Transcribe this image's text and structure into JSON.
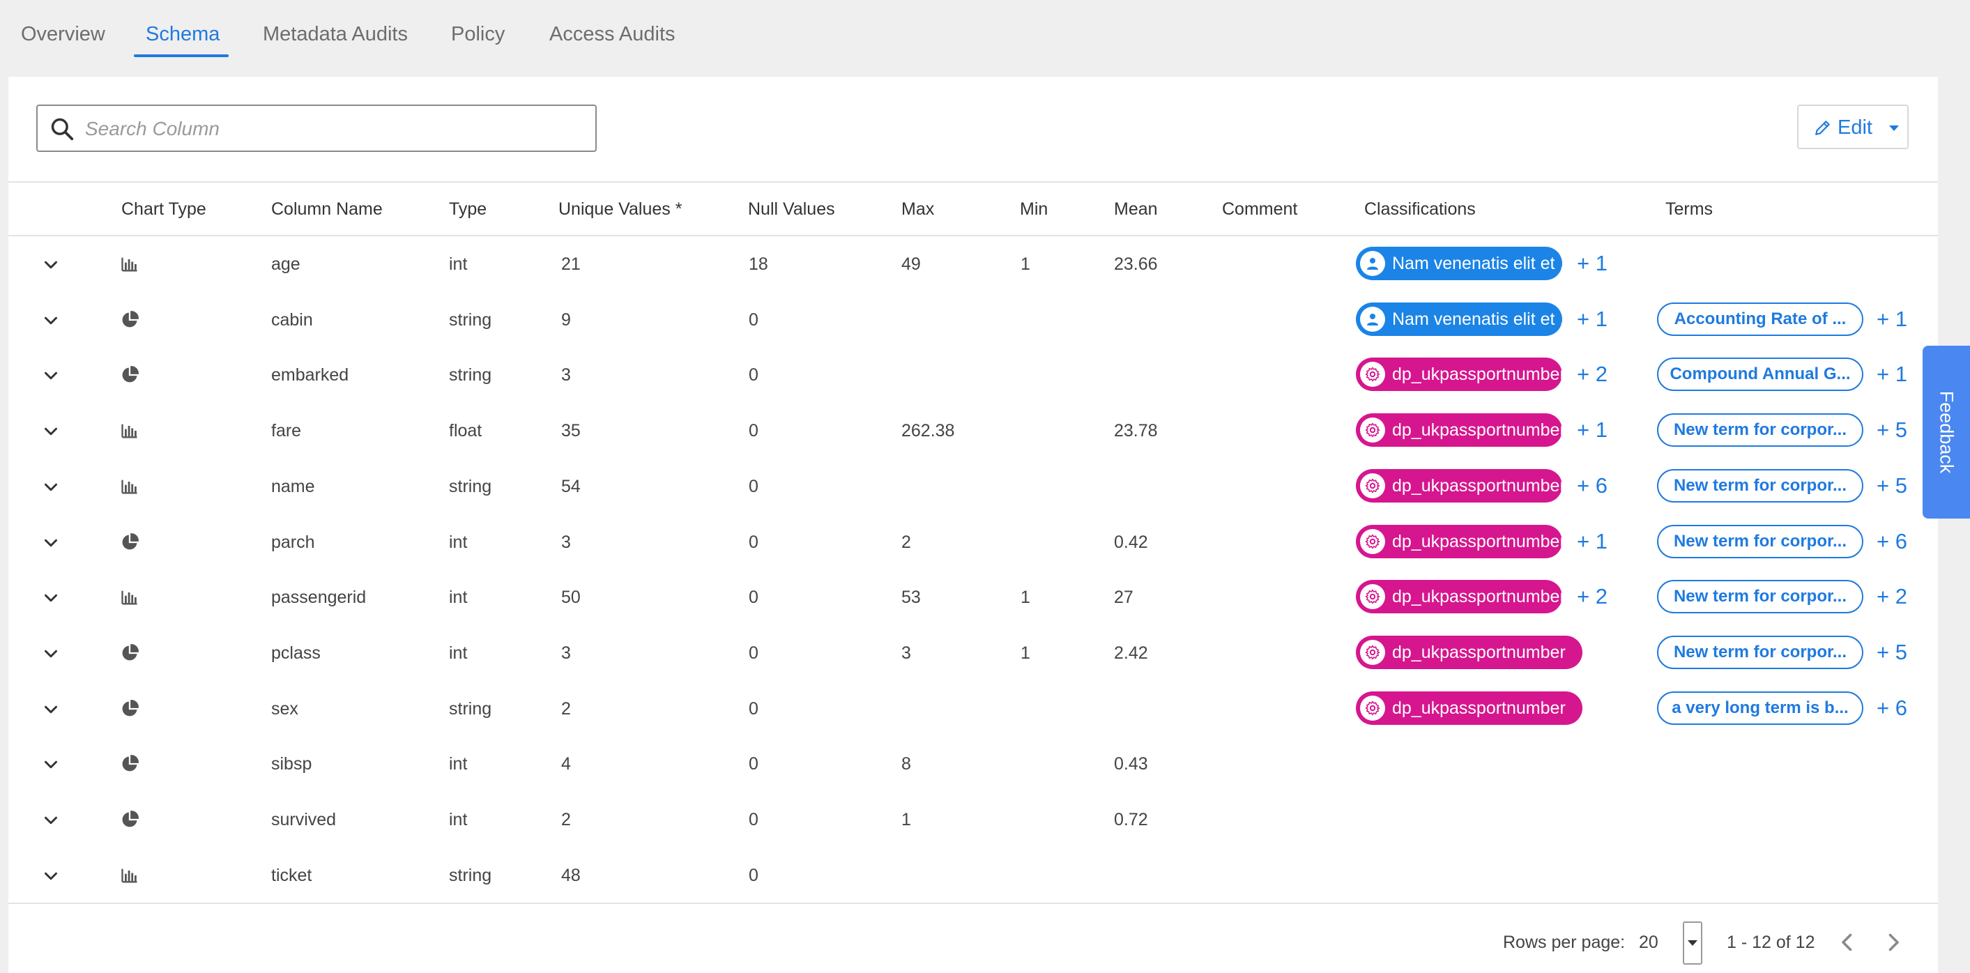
{
  "tabs": [
    {
      "label": "Overview"
    },
    {
      "label": "Schema"
    },
    {
      "label": "Metadata Audits"
    },
    {
      "label": "Policy"
    },
    {
      "label": "Access Audits"
    }
  ],
  "active_tab": "Schema",
  "search": {
    "placeholder": "Search Column",
    "value": ""
  },
  "edit": {
    "label": "Edit"
  },
  "columns": [
    "Chart Type",
    "Column Name",
    "Type",
    "Unique Values *",
    "Null Values",
    "Max",
    "Min",
    "Mean",
    "Comment",
    "Classifications",
    "Terms"
  ],
  "rows": [
    {
      "chart": "bar-chart-icon",
      "name": "age",
      "type": "int",
      "unique": "21",
      "nulls": "18",
      "max": "49",
      "min": "1",
      "mean": "23.66",
      "comment": "",
      "classification": {
        "kind": "user",
        "label": "Nam venenatis elit et ...",
        "more": "+ 1"
      },
      "term": null
    },
    {
      "chart": "pie-chart-icon",
      "name": "cabin",
      "type": "string",
      "unique": "9",
      "nulls": "0",
      "max": "",
      "min": "",
      "mean": "",
      "comment": "",
      "classification": {
        "kind": "user",
        "label": "Nam venenatis elit et ...",
        "more": "+ 1"
      },
      "term": {
        "label": "Accounting Rate of ...",
        "more": "+ 1"
      }
    },
    {
      "chart": "pie-chart-icon",
      "name": "embarked",
      "type": "string",
      "unique": "3",
      "nulls": "0",
      "max": "",
      "min": "",
      "mean": "",
      "comment": "",
      "classification": {
        "kind": "gear",
        "label": "dp_ukpassportnumber",
        "more": "+ 2"
      },
      "term": {
        "label": "Compound Annual G...",
        "more": "+ 1"
      }
    },
    {
      "chart": "bar-chart-icon",
      "name": "fare",
      "type": "float",
      "unique": "35",
      "nulls": "0",
      "max": "262.38",
      "min": "",
      "mean": "23.78",
      "comment": "",
      "classification": {
        "kind": "gear",
        "label": "dp_ukpassportnumber",
        "more": "+ 1"
      },
      "term": {
        "label": "New term for corpor...",
        "more": "+ 5"
      }
    },
    {
      "chart": "bar-chart-icon",
      "name": "name",
      "type": "string",
      "unique": "54",
      "nulls": "0",
      "max": "",
      "min": "",
      "mean": "",
      "comment": "",
      "classification": {
        "kind": "gear",
        "label": "dp_ukpassportnumber",
        "more": "+ 6"
      },
      "term": {
        "label": "New term for corpor...",
        "more": "+ 5"
      }
    },
    {
      "chart": "pie-chart-icon",
      "name": "parch",
      "type": "int",
      "unique": "3",
      "nulls": "0",
      "max": "2",
      "min": "",
      "mean": "0.42",
      "comment": "",
      "classification": {
        "kind": "gear",
        "label": "dp_ukpassportnumber",
        "more": "+ 1"
      },
      "term": {
        "label": "New term for corpor...",
        "more": "+ 6"
      }
    },
    {
      "chart": "bar-chart-icon",
      "name": "passengerid",
      "type": "int",
      "unique": "50",
      "nulls": "0",
      "max": "53",
      "min": "1",
      "mean": "27",
      "comment": "",
      "classification": {
        "kind": "gear",
        "label": "dp_ukpassportnumber",
        "more": "+ 2"
      },
      "term": {
        "label": "New term for corpor...",
        "more": "+ 2"
      }
    },
    {
      "chart": "pie-chart-icon",
      "name": "pclass",
      "type": "int",
      "unique": "3",
      "nulls": "0",
      "max": "3",
      "min": "1",
      "mean": "2.42",
      "comment": "",
      "classification": {
        "kind": "gear",
        "label": "dp_ukpassportnumber",
        "more": ""
      },
      "term": {
        "label": "New term for corpor...",
        "more": "+ 5"
      }
    },
    {
      "chart": "pie-chart-icon",
      "name": "sex",
      "type": "string",
      "unique": "2",
      "nulls": "0",
      "max": "",
      "min": "",
      "mean": "",
      "comment": "",
      "classification": {
        "kind": "gear",
        "label": "dp_ukpassportnumber",
        "more": ""
      },
      "term": {
        "label": "a very long term is b...",
        "more": "+ 6"
      }
    },
    {
      "chart": "pie-chart-icon",
      "name": "sibsp",
      "type": "int",
      "unique": "4",
      "nulls": "0",
      "max": "8",
      "min": "",
      "mean": "0.43",
      "comment": "",
      "classification": null,
      "term": null
    },
    {
      "chart": "pie-chart-icon",
      "name": "survived",
      "type": "int",
      "unique": "2",
      "nulls": "0",
      "max": "1",
      "min": "",
      "mean": "0.72",
      "comment": "",
      "classification": null,
      "term": null
    },
    {
      "chart": "bar-chart-icon",
      "name": "ticket",
      "type": "string",
      "unique": "48",
      "nulls": "0",
      "max": "",
      "min": "",
      "mean": "",
      "comment": "",
      "classification": null,
      "term": null
    }
  ],
  "pagination": {
    "rows_per_page_label": "Rows per page:",
    "rows_per_page": "20",
    "range": "1 - 12 of 12"
  },
  "feedback": {
    "label": "Feedback"
  },
  "colors": {
    "accent": "#1f7adf",
    "user_badge": "#1b84e6",
    "gear_badge": "#d6168e",
    "feedback": "#4a87f0"
  }
}
